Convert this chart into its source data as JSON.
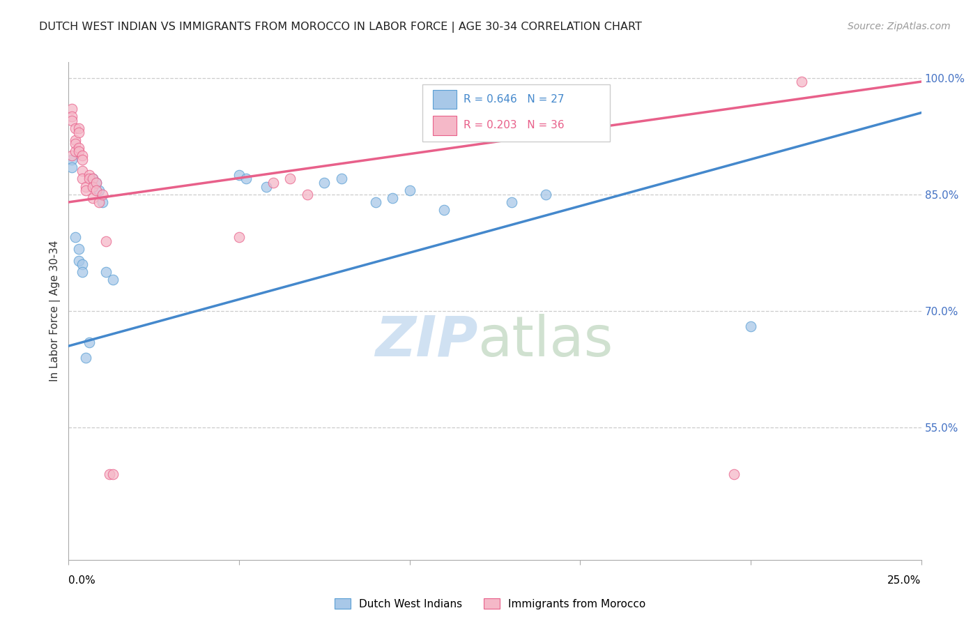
{
  "title": "DUTCH WEST INDIAN VS IMMIGRANTS FROM MOROCCO IN LABOR FORCE | AGE 30-34 CORRELATION CHART",
  "source": "Source: ZipAtlas.com",
  "ylabel": "In Labor Force | Age 30-34",
  "xmin": 0.0,
  "xmax": 0.25,
  "ymin": 0.38,
  "ymax": 1.02,
  "legend_blue_r": "R = 0.646",
  "legend_blue_n": "N = 27",
  "legend_pink_r": "R = 0.203",
  "legend_pink_n": "N = 36",
  "blue_scatter_color": "#a8c8e8",
  "blue_scatter_edge": "#5a9fd4",
  "pink_scatter_color": "#f5b8c8",
  "pink_scatter_edge": "#e8608a",
  "blue_line_color": "#4488cc",
  "pink_line_color": "#e8608a",
  "label_blue": "Dutch West Indians",
  "label_pink": "Immigrants from Morocco",
  "blue_legend_color": "#4488cc",
  "pink_legend_color": "#e8608a",
  "blue_points_x": [
    0.001,
    0.001,
    0.002,
    0.003,
    0.003,
    0.004,
    0.004,
    0.005,
    0.006,
    0.007,
    0.008,
    0.009,
    0.01,
    0.011,
    0.013,
    0.05,
    0.052,
    0.058,
    0.075,
    0.08,
    0.09,
    0.095,
    0.1,
    0.11,
    0.13,
    0.14,
    0.2
  ],
  "blue_points_y": [
    0.895,
    0.885,
    0.795,
    0.78,
    0.765,
    0.76,
    0.75,
    0.64,
    0.66,
    0.87,
    0.865,
    0.855,
    0.84,
    0.75,
    0.74,
    0.875,
    0.87,
    0.86,
    0.865,
    0.87,
    0.84,
    0.845,
    0.855,
    0.83,
    0.84,
    0.85,
    0.68
  ],
  "pink_points_x": [
    0.001,
    0.001,
    0.001,
    0.001,
    0.002,
    0.002,
    0.002,
    0.002,
    0.003,
    0.003,
    0.003,
    0.003,
    0.004,
    0.004,
    0.004,
    0.004,
    0.005,
    0.005,
    0.006,
    0.006,
    0.007,
    0.007,
    0.007,
    0.008,
    0.008,
    0.009,
    0.01,
    0.011,
    0.012,
    0.013,
    0.05,
    0.06,
    0.065,
    0.07,
    0.195,
    0.215
  ],
  "pink_points_y": [
    0.9,
    0.96,
    0.95,
    0.945,
    0.935,
    0.92,
    0.915,
    0.905,
    0.935,
    0.93,
    0.91,
    0.905,
    0.9,
    0.895,
    0.88,
    0.87,
    0.86,
    0.855,
    0.875,
    0.87,
    0.87,
    0.86,
    0.845,
    0.865,
    0.855,
    0.84,
    0.85,
    0.79,
    0.49,
    0.49,
    0.795,
    0.865,
    0.87,
    0.85,
    0.49,
    0.995
  ],
  "blue_trend_x": [
    0.0,
    0.25
  ],
  "blue_trend_y": [
    0.655,
    0.955
  ],
  "pink_trend_x": [
    0.0,
    0.25
  ],
  "pink_trend_y": [
    0.84,
    0.995
  ],
  "grid_yticks": [
    1.0,
    0.85,
    0.7,
    0.55
  ],
  "grid_color": "#cccccc",
  "background_color": "#ffffff",
  "right_tick_color": "#4472c4",
  "watermark_zip_color": "#c8dcf0",
  "watermark_atlas_color": "#c8dcc8"
}
